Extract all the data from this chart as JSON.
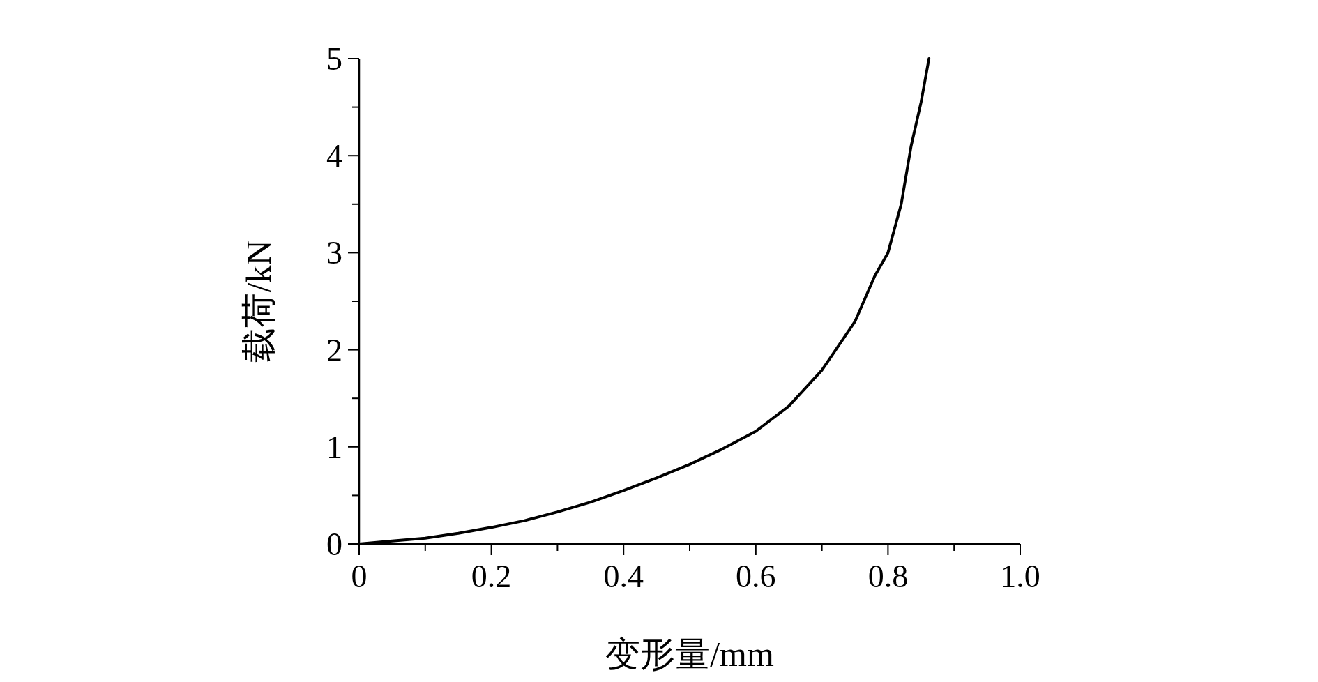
{
  "chart_data": {
    "type": "line",
    "xlabel": "变形量/mm",
    "ylabel": "载荷/kN",
    "x": [
      0,
      0.05,
      0.1,
      0.15,
      0.2,
      0.25,
      0.3,
      0.35,
      0.4,
      0.45,
      0.5,
      0.55,
      0.6,
      0.65,
      0.7,
      0.75,
      0.78,
      0.8,
      0.82,
      0.835,
      0.85,
      0.862
    ],
    "series": [
      {
        "color": "#000000",
        "values": [
          0,
          0.03,
          0.06,
          0.11,
          0.17,
          0.24,
          0.33,
          0.43,
          0.55,
          0.68,
          0.82,
          0.98,
          1.16,
          1.42,
          1.79,
          2.29,
          2.76,
          3.0,
          3.5,
          4.1,
          4.55,
          5.0
        ]
      }
    ],
    "xlim": [
      0,
      1
    ],
    "ylim": [
      0,
      5
    ],
    "xticks": [
      0,
      {
        "value": 0.1,
        "label": null
      },
      0.2,
      {
        "value": 0.3,
        "label": null
      },
      0.4,
      {
        "value": 0.5,
        "label": null
      },
      0.6,
      {
        "value": 0.7,
        "label": null
      },
      0.8,
      {
        "value": 0.9,
        "label": null
      },
      {
        "value": 1,
        "label": "1.0"
      }
    ],
    "yticks": [
      0,
      {
        "value": 0.5,
        "label": null
      },
      1,
      {
        "value": 1.5,
        "label": null
      },
      2,
      {
        "value": 2.5,
        "label": null
      },
      3,
      {
        "value": 3.5,
        "label": null
      },
      4,
      {
        "value": 4.5,
        "label": null
      },
      5
    ]
  }
}
